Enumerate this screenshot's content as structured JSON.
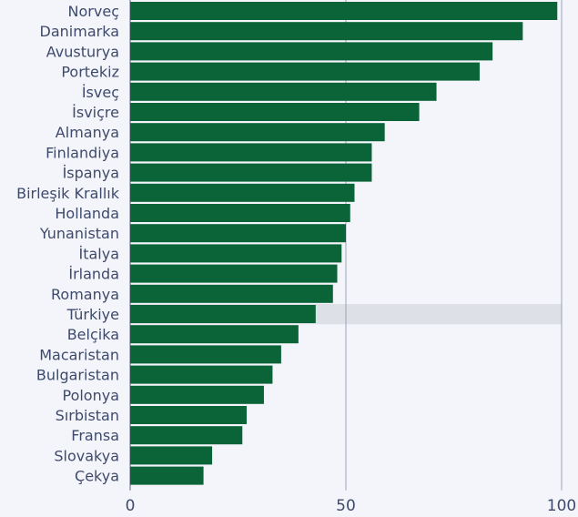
{
  "chart_data": {
    "type": "bar",
    "orientation": "horizontal",
    "categories": [
      "Norveç",
      "Danimarka",
      "Avusturya",
      "Portekiz",
      "İsveç",
      "İsviçre",
      "Almanya",
      "Finlandiya",
      "İspanya",
      "Birleşik Krallık",
      "Hollanda",
      "Yunanistan",
      "İtalya",
      "İrlanda",
      "Romanya",
      "Türkiye",
      "Belçika",
      "Macaristan",
      "Bulgaristan",
      "Polonya",
      "Sırbistan",
      "Fransa",
      "Slovakya",
      "Çekya"
    ],
    "values": [
      99,
      91,
      84,
      81,
      71,
      67,
      59,
      56,
      56,
      52,
      51,
      50,
      49,
      48,
      47,
      43,
      39,
      35,
      33,
      31,
      27,
      26,
      19,
      17
    ],
    "highlight_category": "Türkiye",
    "xlim": [
      0,
      100
    ],
    "xticks": [
      "0",
      "50",
      "100"
    ],
    "grid": true,
    "bar_color": "#0a6438",
    "highlight_color": "#dde0e6"
  }
}
